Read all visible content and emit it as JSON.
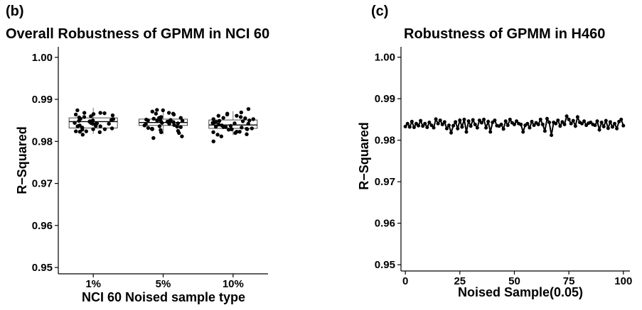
{
  "chart_data": [
    {
      "panel_label": "(b)",
      "type": "box",
      "title": "Overall Robustness of  GPMM in NCI 60",
      "xlabel": "NCI 60 Noised sample type",
      "ylabel": "R−Squared",
      "ylim": [
        0.9485,
        1.0025
      ],
      "yticks": [
        0.95,
        0.96,
        0.97,
        0.98,
        0.99,
        1.0
      ],
      "ytick_labels": [
        "0.95",
        "0.96",
        "0.97",
        "0.98",
        "0.99",
        "1.00"
      ],
      "categories": [
        "1%",
        "5%",
        "10%"
      ],
      "boxes": [
        {
          "name": "1%",
          "min": 0.9818,
          "q1": 0.9832,
          "median": 0.9847,
          "q3": 0.9856,
          "max": 0.988,
          "points": [
            0.985,
            0.9837,
            0.9874,
            0.9816,
            0.986,
            0.9865,
            0.9824,
            0.9842,
            0.9843,
            0.9847,
            0.9868,
            0.9829,
            0.9822,
            0.9864,
            0.9829,
            0.9828,
            0.9868,
            0.9857,
            0.9837,
            0.9842,
            0.9823,
            0.9844,
            0.9851,
            0.9862,
            0.9836,
            0.9844,
            0.9831,
            0.9854,
            0.9848,
            0.984,
            0.9836,
            0.9858,
            0.9838,
            0.9853,
            0.9846,
            0.9833,
            0.9841,
            0.9824,
            0.9849,
            0.9867
          ]
        },
        {
          "name": "5%",
          "min": 0.9817,
          "q1": 0.9838,
          "median": 0.9845,
          "q3": 0.9853,
          "max": 0.9873,
          "points": [
            0.985,
            0.9875,
            0.9841,
            0.9834,
            0.9871,
            0.982,
            0.9844,
            0.983,
            0.9847,
            0.9856,
            0.9864,
            0.9848,
            0.9832,
            0.983,
            0.9858,
            0.9852,
            0.9838,
            0.9836,
            0.9851,
            0.9842,
            0.9812,
            0.9866,
            0.9827,
            0.9874,
            0.9857,
            0.9835,
            0.9822,
            0.9849,
            0.9808,
            0.9829,
            0.9866,
            0.985,
            0.9854,
            0.9839,
            0.9843,
            0.9849,
            0.9856,
            0.9825,
            0.9846,
            0.9868
          ]
        },
        {
          "name": "10%",
          "min": 0.9815,
          "q1": 0.9831,
          "median": 0.9839,
          "q3": 0.9851,
          "max": 0.9872,
          "points": [
            0.982,
            0.9853,
            0.9834,
            0.9864,
            0.9812,
            0.9828,
            0.9858,
            0.9848,
            0.9834,
            0.9831,
            0.9844,
            0.9866,
            0.9823,
            0.9837,
            0.9846,
            0.9853,
            0.9829,
            0.9877,
            0.9861,
            0.9829,
            0.9816,
            0.9855,
            0.985,
            0.9856,
            0.98,
            0.984,
            0.9833,
            0.9869,
            0.9823,
            0.9842,
            0.9838,
            0.983,
            0.9849,
            0.9845,
            0.9835,
            0.9822,
            0.9843,
            0.9817,
            0.9829,
            0.9861
          ]
        }
      ]
    },
    {
      "panel_label": "(c)",
      "type": "line",
      "title": "Robustness of  GPMM in H460",
      "xlabel": "Noised Sample(0.05)",
      "ylabel": "R−Squared",
      "xlim": [
        -2,
        103
      ],
      "ylim": [
        0.9485,
        1.0025
      ],
      "xticks": [
        0,
        25,
        50,
        75,
        100
      ],
      "xtick_labels": [
        "0",
        "25",
        "50",
        "75",
        "100"
      ],
      "yticks": [
        0.95,
        0.96,
        0.97,
        0.98,
        0.99,
        1.0
      ],
      "ytick_labels": [
        "0.95",
        "0.96",
        "0.97",
        "0.98",
        "0.99",
        "1.00"
      ],
      "x": [
        0,
        1,
        2,
        3,
        4,
        5,
        6,
        7,
        8,
        9,
        10,
        11,
        12,
        13,
        14,
        15,
        16,
        17,
        18,
        19,
        20,
        21,
        22,
        23,
        24,
        25,
        26,
        27,
        28,
        29,
        30,
        31,
        32,
        33,
        34,
        35,
        36,
        37,
        38,
        39,
        40,
        41,
        42,
        43,
        44,
        45,
        46,
        47,
        48,
        49,
        50,
        51,
        52,
        53,
        54,
        55,
        56,
        57,
        58,
        59,
        60,
        61,
        62,
        63,
        64,
        65,
        66,
        67,
        68,
        69,
        70,
        71,
        72,
        73,
        74,
        75,
        76,
        77,
        78,
        79,
        80,
        81,
        82,
        83,
        84,
        85,
        86,
        87,
        88,
        89,
        90,
        91,
        92,
        93,
        94,
        95,
        96,
        97,
        98,
        99,
        100
      ],
      "values": [
        0.9833,
        0.984,
        0.9832,
        0.9845,
        0.9831,
        0.984,
        0.9835,
        0.9847,
        0.9834,
        0.984,
        0.9831,
        0.9843,
        0.9836,
        0.983,
        0.9851,
        0.984,
        0.9848,
        0.9838,
        0.9844,
        0.9828,
        0.9836,
        0.9818,
        0.9835,
        0.9844,
        0.9828,
        0.9848,
        0.9832,
        0.985,
        0.982,
        0.9846,
        0.9834,
        0.9849,
        0.9838,
        0.983,
        0.9848,
        0.9842,
        0.985,
        0.983,
        0.9845,
        0.982,
        0.9843,
        0.9848,
        0.9835,
        0.9834,
        0.9838,
        0.9827,
        0.9846,
        0.9836,
        0.985,
        0.9842,
        0.9838,
        0.9846,
        0.984,
        0.9838,
        0.982,
        0.9836,
        0.984,
        0.983,
        0.9845,
        0.9836,
        0.9842,
        0.9838,
        0.985,
        0.9838,
        0.9822,
        0.9852,
        0.9843,
        0.9812,
        0.9843,
        0.984,
        0.9848,
        0.9834,
        0.9844,
        0.9838,
        0.9858,
        0.985,
        0.984,
        0.9847,
        0.9834,
        0.9856,
        0.9843,
        0.984,
        0.9846,
        0.9836,
        0.9841,
        0.9843,
        0.9838,
        0.9836,
        0.9846,
        0.9825,
        0.9843,
        0.9833,
        0.9847,
        0.9829,
        0.9844,
        0.9832,
        0.984,
        0.9828,
        0.9845,
        0.985,
        0.9835
      ]
    }
  ]
}
